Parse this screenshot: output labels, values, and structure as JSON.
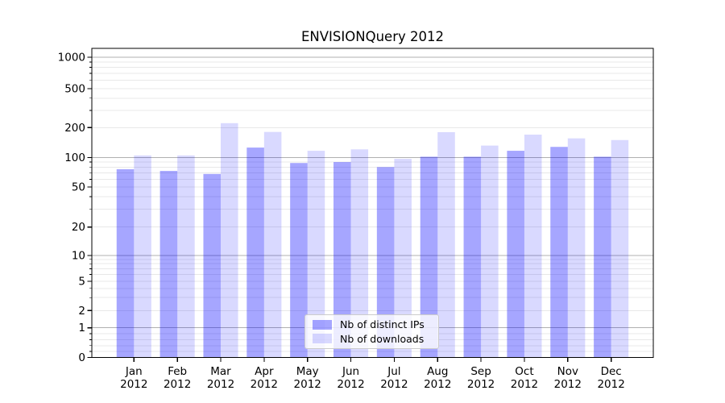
{
  "chart_data": {
    "type": "bar",
    "title": "ENVISIONQuery 2012",
    "categories": [
      "Jan 2012",
      "Feb 2012",
      "Mar 2012",
      "Apr 2012",
      "May 2012",
      "Jun 2012",
      "Jul 2012",
      "Aug 2012",
      "Sep 2012",
      "Oct 2012",
      "Nov 2012",
      "Dec 2012"
    ],
    "series": [
      {
        "name": "Nb of distinct IPs",
        "color": "rgba(0,0,255,0.35)",
        "values": [
          76,
          73,
          68,
          126,
          88,
          90,
          80,
          102,
          102,
          117,
          128,
          102
        ]
      },
      {
        "name": "Nb of downloads",
        "color": "rgba(0,0,255,0.15)",
        "values": [
          105,
          105,
          222,
          181,
          117,
          121,
          97,
          180,
          132,
          170,
          156,
          150
        ]
      }
    ],
    "yscale": "symlog",
    "ytick_values": [
      0,
      1,
      2,
      5,
      10,
      20,
      50,
      100,
      200,
      500,
      1000
    ],
    "ytick_labels": [
      "0",
      "1",
      "2",
      "5",
      "10",
      "20",
      "50",
      "100",
      "200",
      "500",
      "1000"
    ],
    "ylim": [
      0,
      1250
    ],
    "xlabel": "",
    "ylabel": "",
    "grid": true,
    "legend_position": "lower center",
    "colors": {
      "major_grid": "#b0b0b0",
      "minor_grid": "#e8e8e8",
      "axis": "#000000",
      "tick_text": "#000000",
      "legend_border": "#cccccc",
      "background": "#ffffff"
    }
  }
}
